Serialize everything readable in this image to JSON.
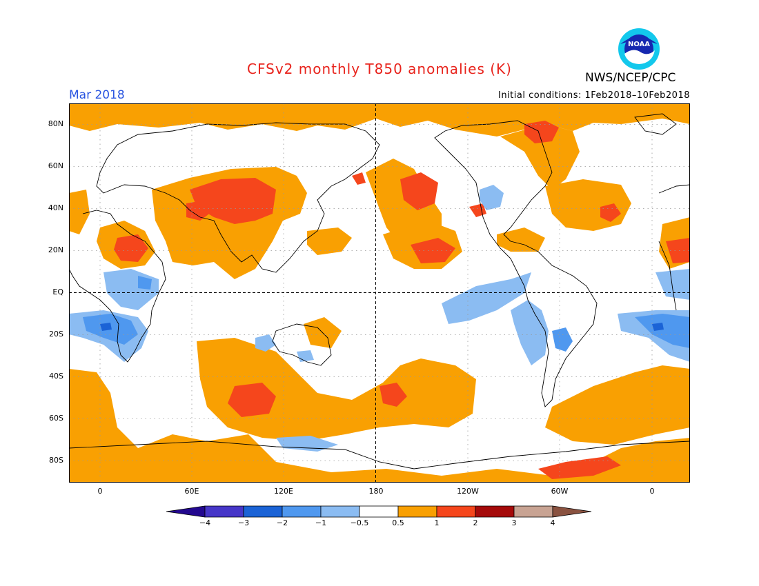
{
  "title": "CFSv2 monthly T850 anomalies (K)",
  "month_label": "Mar 2018",
  "initial_conditions": "Initial conditions: 1Feb2018–10Feb2018",
  "agency": "NWS/NCEP/CPC",
  "logo_text": "NOAA",
  "colors": {
    "title": "#e8231c",
    "month": "#2a55e0",
    "warm1": "#f9a002",
    "warm2": "#f5461c",
    "warm3": "#a50a0a",
    "cool1": "#8bbcf2",
    "cool2": "#4f98ef",
    "cool3": "#1b63d6",
    "cool4": "#4636c8",
    "cool5": "#23088f"
  },
  "lat_labels": [
    "80N",
    "60N",
    "40N",
    "20N",
    "EQ",
    "20S",
    "40S",
    "60S",
    "80S"
  ],
  "lon_labels": [
    "0",
    "60E",
    "120E",
    "180",
    "120W",
    "60W",
    "0"
  ],
  "colorbar": {
    "ticks": [
      "−4",
      "−3",
      "−2",
      "−1",
      "−0.5",
      "0.5",
      "1",
      "2",
      "3",
      "4"
    ],
    "colors": [
      "#23088f",
      "#4636c8",
      "#1b63d6",
      "#4f98ef",
      "#8bbcf2",
      "#ffffff",
      "#f9a002",
      "#f5461c",
      "#a50a0a",
      "#c8a393",
      "#8a5240"
    ]
  }
}
